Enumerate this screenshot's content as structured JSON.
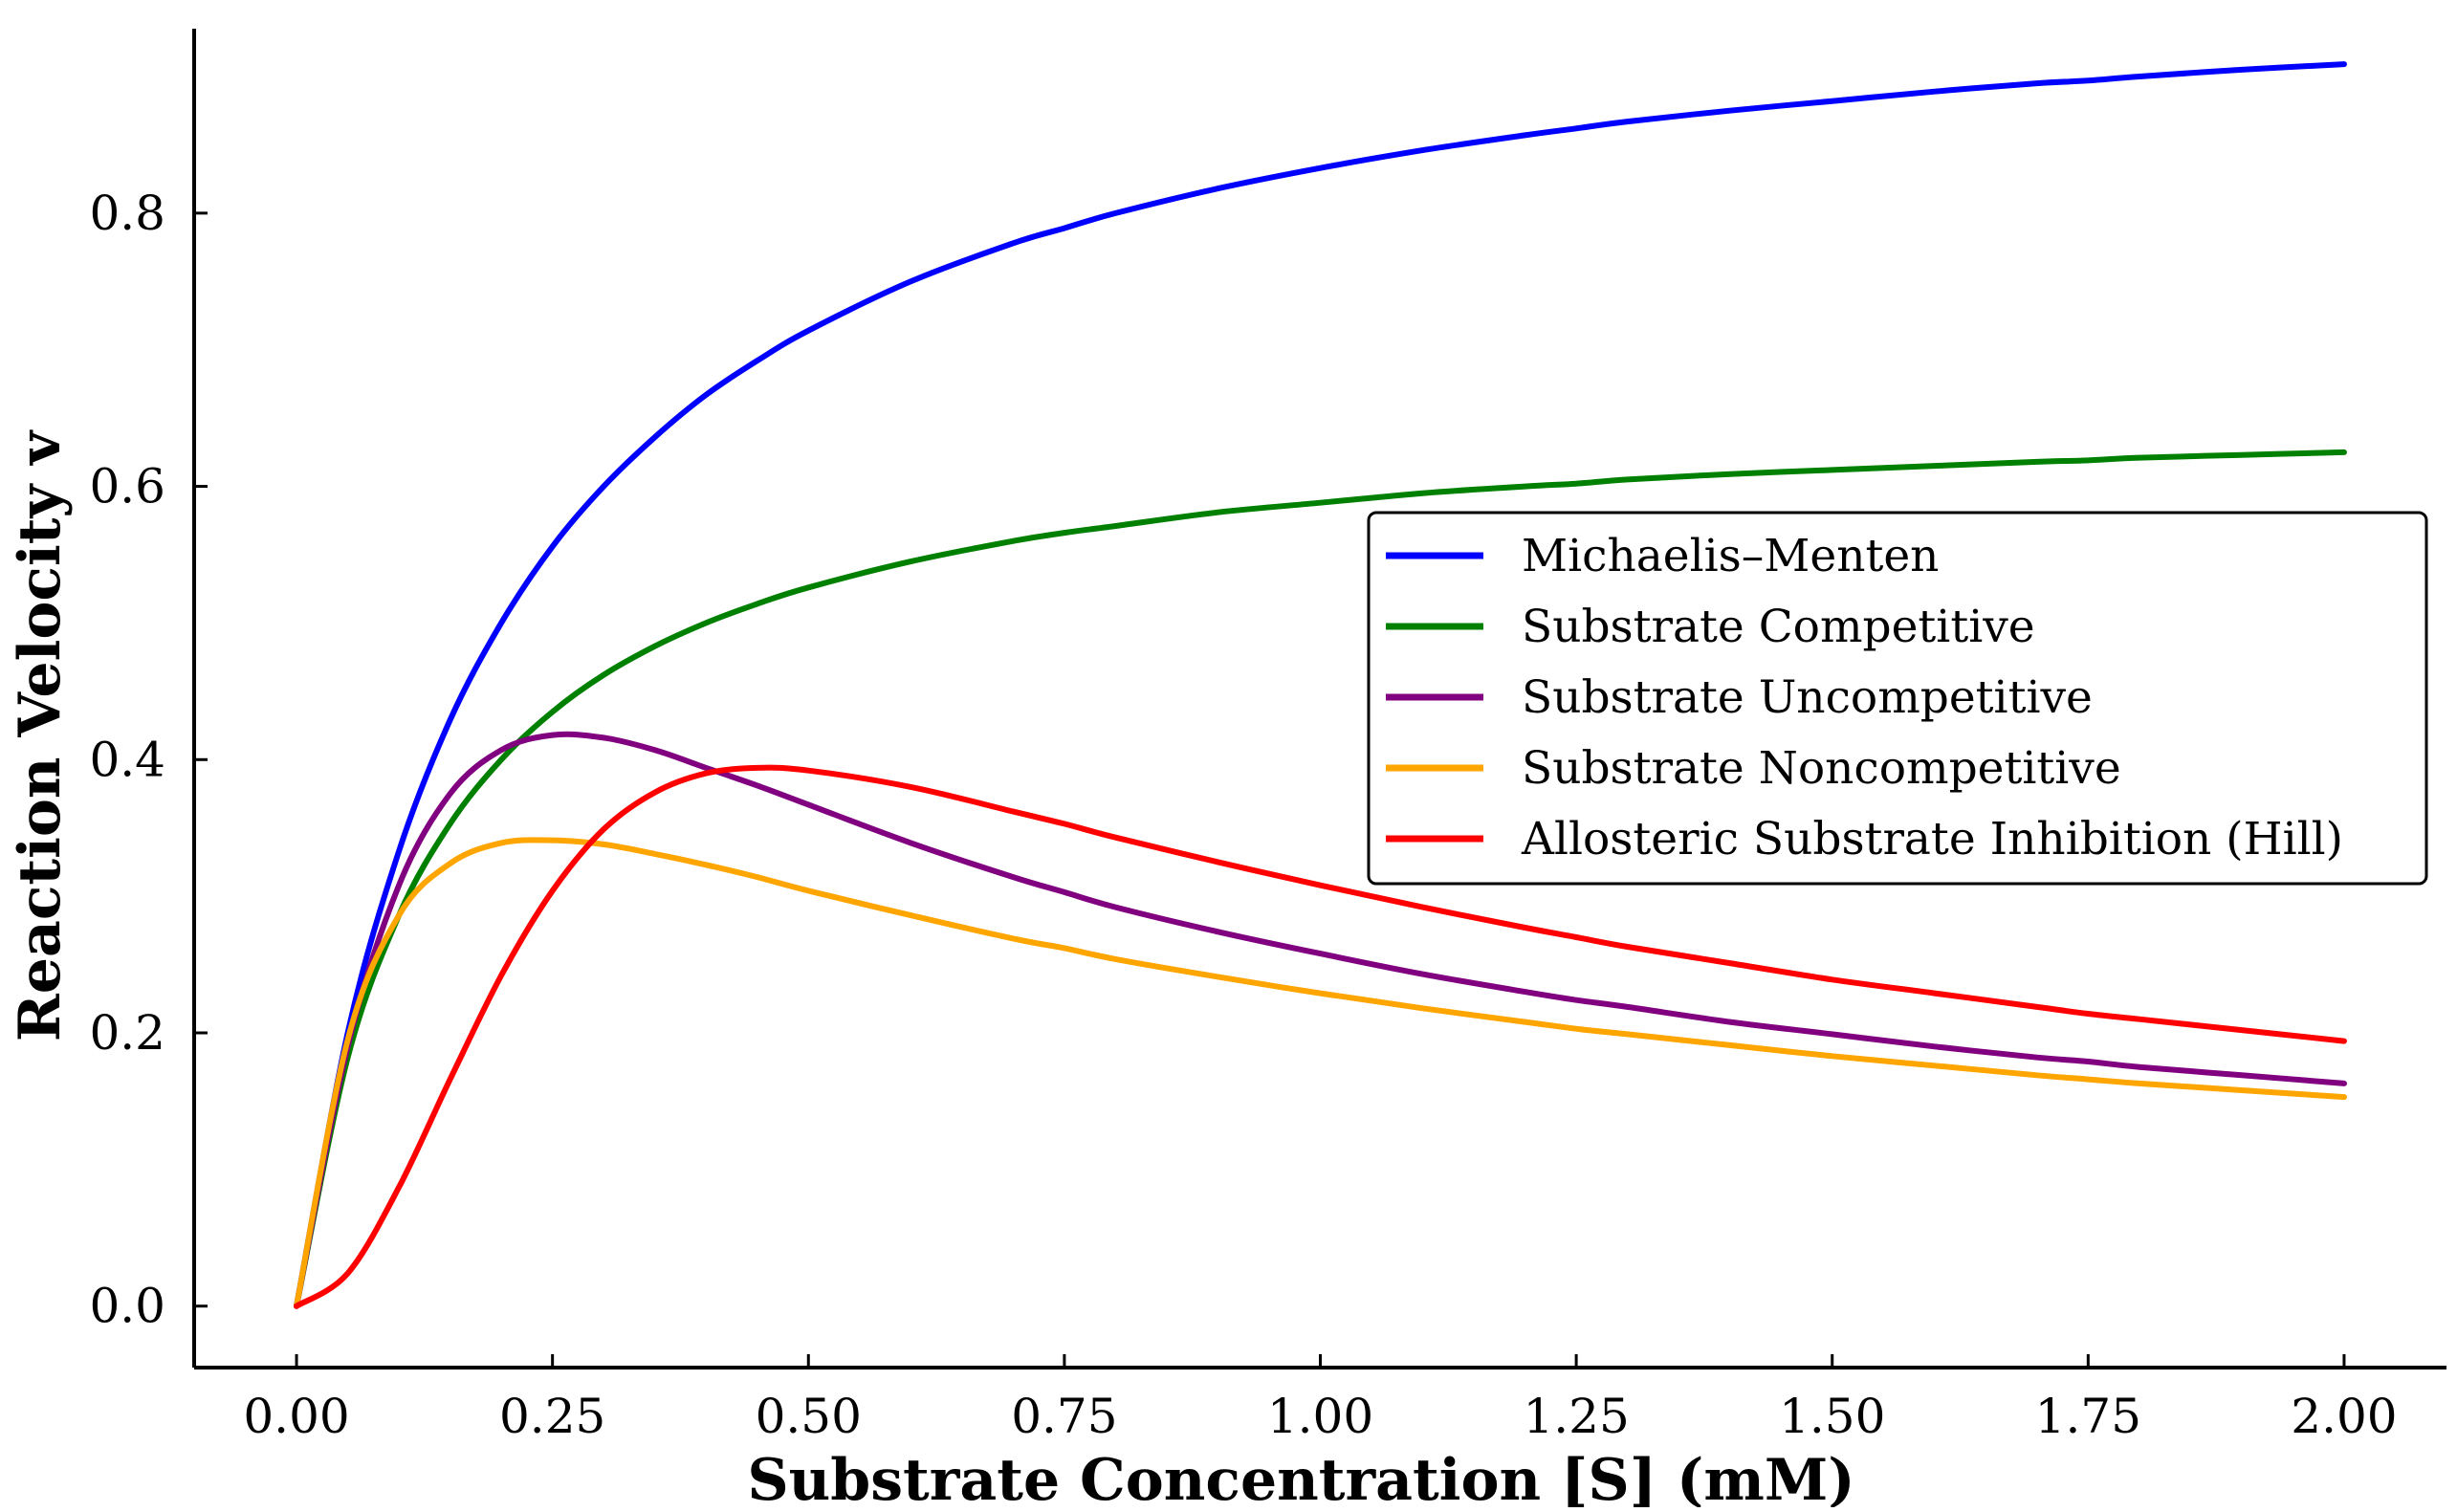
{
  "chart_data": {
    "type": "line",
    "title": "",
    "xlabel": "Substrate Concentration [S] (mM)",
    "ylabel": "Reaction Velocity v",
    "xlim": [
      -0.1,
      2.1
    ],
    "ylim": [
      -0.045,
      0.935
    ],
    "xticks": [
      0.0,
      0.25,
      0.5,
      0.75,
      1.0,
      1.25,
      1.5,
      1.75,
      2.0
    ],
    "xtick_labels": [
      "0.00",
      "0.25",
      "0.50",
      "0.75",
      "1.00",
      "1.25",
      "1.50",
      "1.75",
      "2.00"
    ],
    "yticks": [
      0.0,
      0.2,
      0.4,
      0.6,
      0.8
    ],
    "ytick_labels": [
      "0.0",
      "0.2",
      "0.4",
      "0.6",
      "0.8"
    ],
    "grid": false,
    "legend_position": "center-right",
    "x": [
      0.0,
      0.05,
      0.1,
      0.15,
      0.2,
      0.25,
      0.3,
      0.35,
      0.4,
      0.45,
      0.5,
      0.6,
      0.7,
      0.75,
      0.8,
      0.9,
      1.0,
      1.1,
      1.2,
      1.25,
      1.3,
      1.4,
      1.5,
      1.6,
      1.7,
      1.75,
      1.8,
      1.9,
      2.0
    ],
    "series": [
      {
        "name": "Michaelis–Menten",
        "color": "#0000ff",
        "values": [
          0.0,
          0.2,
          0.333,
          0.429,
          0.5,
          0.556,
          0.6,
          0.636,
          0.667,
          0.692,
          0.714,
          0.75,
          0.778,
          0.789,
          0.8,
          0.818,
          0.833,
          0.846,
          0.857,
          0.862,
          0.867,
          0.875,
          0.882,
          0.889,
          0.895,
          0.897,
          0.9,
          0.905,
          0.909
        ]
      },
      {
        "name": "Substrate Competitive",
        "color": "#008000",
        "values": [
          0.0,
          0.182,
          0.286,
          0.353,
          0.4,
          0.435,
          0.462,
          0.483,
          0.5,
          0.514,
          0.526,
          0.545,
          0.56,
          0.566,
          0.571,
          0.581,
          0.588,
          0.595,
          0.6,
          0.602,
          0.605,
          0.609,
          0.612,
          0.615,
          0.618,
          0.619,
          0.621,
          0.623,
          0.625
        ]
      },
      {
        "name": "Substrate Uncompetitive",
        "color": "#800080",
        "values": [
          0.0,
          0.19,
          0.308,
          0.375,
          0.407,
          0.418,
          0.416,
          0.407,
          0.394,
          0.381,
          0.367,
          0.339,
          0.314,
          0.303,
          0.292,
          0.274,
          0.258,
          0.243,
          0.23,
          0.224,
          0.219,
          0.208,
          0.199,
          0.19,
          0.182,
          0.179,
          0.175,
          0.169,
          0.163
        ]
      },
      {
        "name": "Substrate Noncompetitive",
        "color": "#ffa500",
        "values": [
          0.0,
          0.195,
          0.286,
          0.324,
          0.339,
          0.341,
          0.338,
          0.331,
          0.323,
          0.314,
          0.304,
          0.286,
          0.269,
          0.262,
          0.254,
          0.241,
          0.229,
          0.218,
          0.208,
          0.203,
          0.199,
          0.191,
          0.183,
          0.176,
          0.169,
          0.166,
          0.163,
          0.158,
          0.153
        ]
      },
      {
        "name": "Allosteric Substrate Inhibition (Hill)",
        "color": "#ff0000",
        "values": [
          0.0,
          0.024,
          0.087,
          0.166,
          0.242,
          0.304,
          0.349,
          0.376,
          0.39,
          0.394,
          0.392,
          0.38,
          0.362,
          0.353,
          0.343,
          0.325,
          0.308,
          0.292,
          0.277,
          0.27,
          0.263,
          0.251,
          0.239,
          0.229,
          0.219,
          0.214,
          0.21,
          0.202,
          0.194
        ]
      }
    ]
  }
}
